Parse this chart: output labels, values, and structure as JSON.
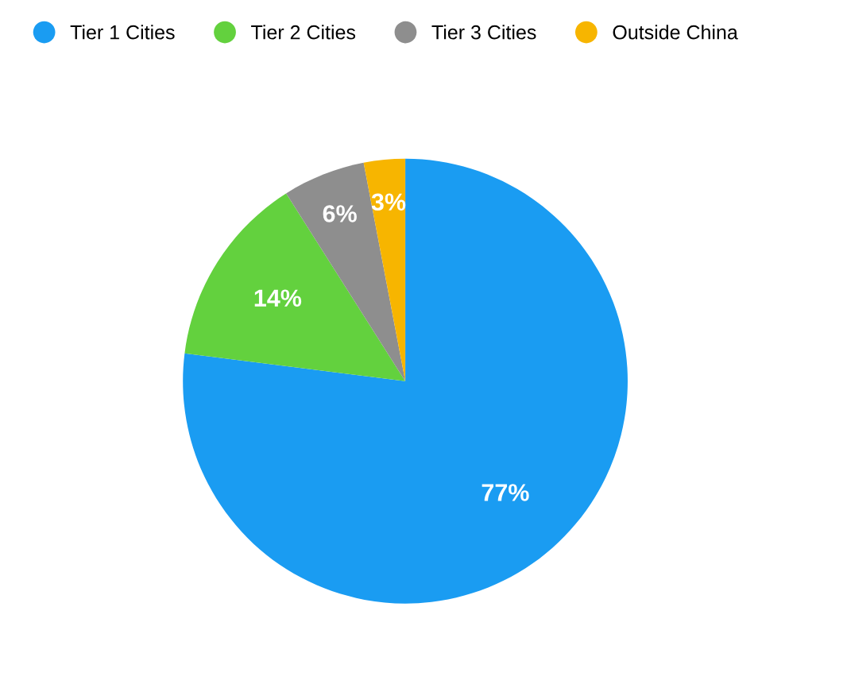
{
  "chart_data": {
    "type": "pie",
    "categories": [
      "Tier 1 Cities",
      "Tier 2 Cities",
      "Tier 3 Cities",
      "Outside China"
    ],
    "values": [
      77,
      14,
      6,
      3
    ],
    "colors": [
      "#1a9cf2",
      "#63d13e",
      "#8e8e8e",
      "#f7b500"
    ],
    "value_labels": [
      "77%",
      "14%",
      "6%",
      "3%"
    ],
    "legend": "top"
  }
}
